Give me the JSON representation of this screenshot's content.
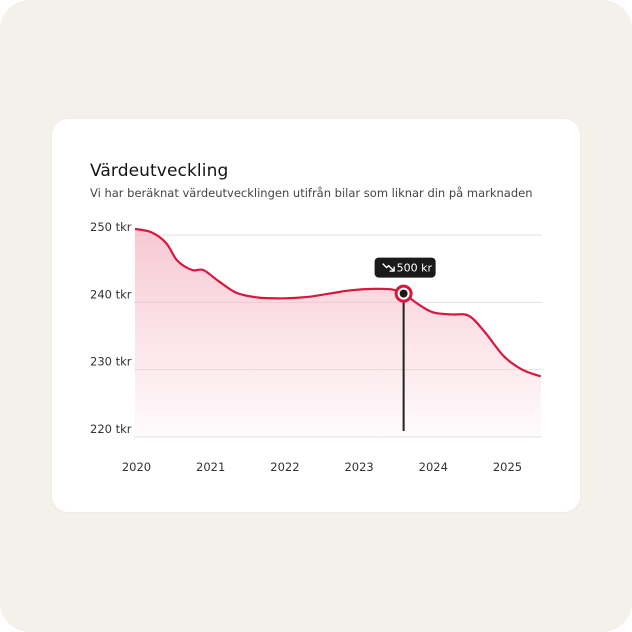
{
  "card": {
    "title": "Värdeutveckling",
    "subtitle": "Vi har beräknat värdeutvecklingen utifrån bilar som liknar din på marknaden"
  },
  "chart_data": {
    "type": "area",
    "title": "Värdeutveckling",
    "subtitle": "Vi har beräknat värdeutvecklingen utifrån bilar som liknar din på marknaden",
    "xlabel": "",
    "ylabel": "",
    "x_ticks": [
      "2020",
      "2021",
      "2022",
      "2023",
      "2024",
      "2025"
    ],
    "y_ticks": [
      {
        "value": 250,
        "label": "250 tkr"
      },
      {
        "value": 240,
        "label": "240 tkr"
      },
      {
        "value": 230,
        "label": "230 tkr"
      },
      {
        "value": 220,
        "label": "220 tkr"
      }
    ],
    "xlim": [
      2020,
      2025.45
    ],
    "ylim": [
      220,
      251
    ],
    "grid": true,
    "series": [
      {
        "x": [
          2019.98,
          2020.2,
          2020.4,
          2020.55,
          2020.75,
          2020.9,
          2021.1,
          2021.35,
          2021.65,
          2022.0,
          2022.3,
          2022.6,
          2022.9,
          2023.2,
          2023.45,
          2023.6,
          2023.8,
          2024.0,
          2024.25,
          2024.48,
          2024.7,
          2024.95,
          2025.2,
          2025.45
        ],
        "y": [
          250.9,
          250.4,
          248.8,
          246.2,
          244.8,
          244.8,
          243.2,
          241.4,
          240.7,
          240.6,
          240.8,
          241.3,
          241.8,
          242.0,
          241.9,
          241.3,
          239.7,
          238.5,
          238.2,
          238.0,
          235.5,
          232.0,
          230.0,
          229.0
        ]
      }
    ],
    "highlight": {
      "x": 2023.6,
      "y": 241.3,
      "label": "500 kr",
      "icon": "trend-down-icon"
    },
    "colors": {
      "line": "#d9163f",
      "area_top": "#f5b7c6",
      "grid": "#e2e2e2",
      "tooltip_bg": "#1a1a1a",
      "marker_fill": "#1a1a1a"
    }
  }
}
